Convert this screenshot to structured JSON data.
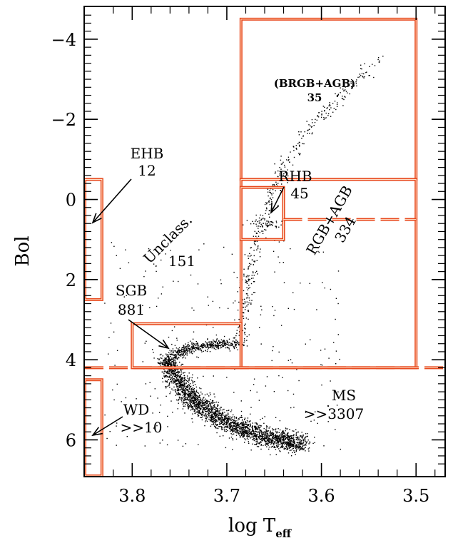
{
  "chart_data": {
    "type": "scatter",
    "title": "",
    "xlabel": "log T",
    "xlabel_sub": "eff",
    "ylabel": "Bol",
    "xlim": [
      3.85,
      3.47
    ],
    "ylim": [
      6.9,
      -4.8
    ],
    "x_reversed": true,
    "y_reversed": true,
    "x_ticks": [
      3.8,
      3.7,
      3.6,
      3.5
    ],
    "x_tick_labels": [
      "3.8",
      "3.7",
      "3.6",
      "3.5"
    ],
    "y_ticks": [
      -4,
      -2,
      0,
      2,
      4,
      6
    ],
    "y_tick_labels": [
      "−4",
      "−2",
      "0",
      "2",
      "4",
      "6"
    ],
    "grid": false,
    "accent_color": "#e8491d",
    "point_color": "#000000",
    "regions": [
      {
        "label": "(BRGB+AGB)",
        "count": "35",
        "x": [
          3.685,
          3.5
        ],
        "y": [
          -4.5,
          -0.5
        ]
      },
      {
        "label": "RGB+AGB",
        "count": "334",
        "x": [
          3.685,
          3.5
        ],
        "y": [
          -0.5,
          4.2
        ]
      },
      {
        "label": "RHB",
        "count": "45",
        "x": [
          3.685,
          3.64
        ],
        "y": [
          -0.3,
          1.0
        ]
      },
      {
        "label": "SGB",
        "count": "881",
        "x": [
          3.8,
          3.685
        ],
        "y": [
          3.1,
          4.2
        ]
      },
      {
        "label": "EHB",
        "count": "12",
        "x": [
          3.85,
          3.832
        ],
        "y": [
          -0.5,
          2.5
        ]
      },
      {
        "label": "WD",
        "count": ">>10",
        "x": [
          3.85,
          3.832
        ],
        "y": [
          4.5,
          6.9
        ]
      },
      {
        "label": "Unclass.",
        "count": "151"
      },
      {
        "label": "MS",
        "count": ">>3307"
      }
    ],
    "dashed_lines": [
      {
        "y": 4.2,
        "x": [
          3.85,
          3.47
        ]
      },
      {
        "y": 0.5,
        "x": [
          3.64,
          3.5
        ]
      }
    ],
    "sequence_tracks": [
      {
        "name": "main sequence",
        "points": [
          [
            3.765,
            4.0
          ],
          [
            3.755,
            4.4
          ],
          [
            3.74,
            4.9
          ],
          [
            3.725,
            5.2
          ],
          [
            3.705,
            5.5
          ],
          [
            3.685,
            5.7
          ],
          [
            3.665,
            5.9
          ],
          [
            3.64,
            6.0
          ],
          [
            3.62,
            6.1
          ]
        ],
        "count": 2600,
        "spread": [
          0.006,
          0.12
        ]
      },
      {
        "name": "subgiant branch",
        "points": [
          [
            3.765,
            4.1
          ],
          [
            3.755,
            3.85
          ],
          [
            3.74,
            3.7
          ],
          [
            3.72,
            3.62
          ],
          [
            3.7,
            3.6
          ],
          [
            3.688,
            3.6
          ]
        ],
        "count": 500,
        "spread": [
          0.004,
          0.06
        ]
      },
      {
        "name": "red giant branch",
        "points": [
          [
            3.688,
            3.6
          ],
          [
            3.685,
            3.0
          ],
          [
            3.678,
            2.0
          ],
          [
            3.668,
            1.0
          ],
          [
            3.658,
            0.2
          ],
          [
            3.645,
            -0.6
          ],
          [
            3.62,
            -1.6
          ],
          [
            3.58,
            -2.6
          ],
          [
            3.54,
            -3.5
          ]
        ],
        "count": 420,
        "spread": [
          0.004,
          0.08
        ]
      },
      {
        "name": "red horizontal branch",
        "points": [
          [
            3.672,
            0.55
          ],
          [
            3.662,
            0.55
          ],
          [
            3.652,
            0.6
          ],
          [
            3.645,
            0.62
          ]
        ],
        "count": 50,
        "spread": [
          0.005,
          0.06
        ]
      },
      {
        "name": "off-sequence stars",
        "box": [
          [
            3.83,
            3.58
          ],
          [
            1.0,
            6.3
          ]
        ],
        "count": 260
      }
    ]
  },
  "annotations": {
    "brgb_agb_label": "(BRGB+AGB)",
    "brgb_agb_count": "35",
    "rgb_agb_label": "RGB+AGB",
    "rgb_agb_count": "334",
    "rhb_label": "RHB",
    "rhb_count": "45",
    "ehb_label": "EHB",
    "ehb_count": "12",
    "unclass_label": "Unclass.",
    "unclass_count": "151",
    "sgb_label": "SGB",
    "sgb_count": "881",
    "wd_label": "WD",
    "wd_count": ">>10",
    "ms_label": "MS",
    "ms_count": ">>3307"
  }
}
